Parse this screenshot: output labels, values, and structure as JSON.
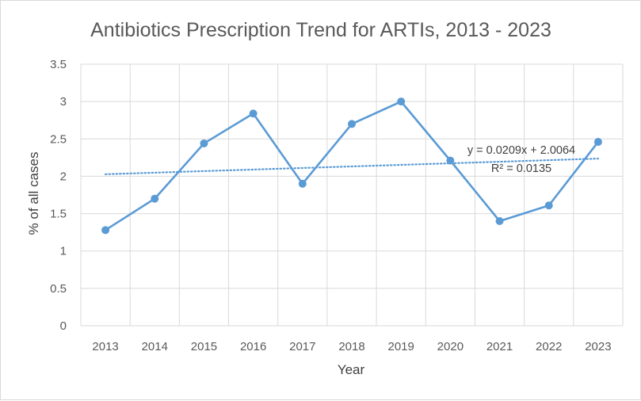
{
  "chart_data": {
    "type": "line",
    "title": "Antibiotics Prescription Trend for ARTIs, 2013 - 2023",
    "xlabel": "Year",
    "ylabel": "% of all cases",
    "categories": [
      "2013",
      "2014",
      "2015",
      "2016",
      "2017",
      "2018",
      "2019",
      "2020",
      "2021",
      "2022",
      "2023"
    ],
    "series": [
      {
        "values": [
          1.28,
          1.7,
          2.44,
          2.84,
          1.9,
          2.7,
          3.0,
          2.21,
          1.4,
          1.61,
          2.46
        ],
        "color": "#5b9bd5",
        "marker": "circle"
      }
    ],
    "trendline": {
      "type": "linear",
      "style": "dotted",
      "color": "#5b9bd5",
      "slope": 0.0209,
      "intercept": 2.0064,
      "equation": "y = 0.0209x + 2.0064",
      "r_squared": "R² = 0.0135"
    },
    "ylim": [
      0,
      3.5
    ],
    "yticks": [
      "0",
      "0.5",
      "1",
      "1.5",
      "2",
      "2.5",
      "3",
      "3.5"
    ],
    "grid": true,
    "legend": "none"
  }
}
